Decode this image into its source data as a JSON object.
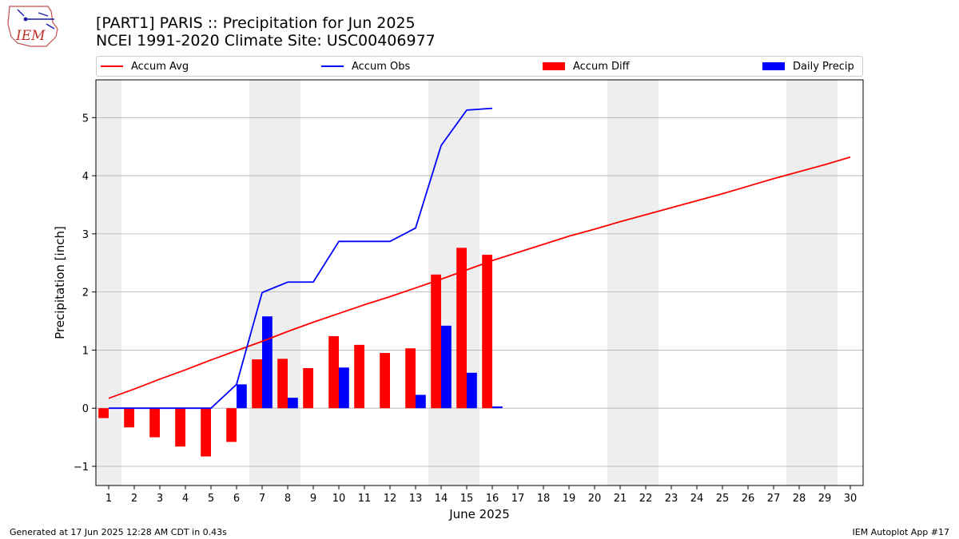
{
  "header": {
    "title_line1": "[PART1] PARIS :: Precipitation for Jun 2025",
    "title_line2": "NCEI 1991-2020 Climate Site: USC00406977",
    "logo_text": "IEM"
  },
  "legend": {
    "accum_avg": "Accum Avg",
    "accum_obs": "Accum Obs",
    "accum_diff": "Accum Diff",
    "daily_precip": "Daily Precip"
  },
  "footer": {
    "generated": "Generated at 17 Jun 2025 12:28 AM CDT in 0.43s",
    "app": "IEM Autoplot App #17"
  },
  "colors": {
    "accum_avg": "#ff0000",
    "accum_obs": "#0000ff",
    "accum_diff": "#ff0000",
    "daily_precip": "#0000ff",
    "weekend_shade": "#eeeeee",
    "grid": "#b0b0b0"
  },
  "chart_data": {
    "type": "bar",
    "title": "[PART1] PARIS :: Precipitation for Jun 2025",
    "xlabel": "June 2025",
    "ylabel": "Precipitation [inch]",
    "xlim": [
      0.5,
      30.5
    ],
    "ylim": [
      -1.33,
      5.65
    ],
    "yticks": [
      -1,
      0,
      1,
      2,
      3,
      4,
      5
    ],
    "ytick_labels": [
      "−1",
      "0",
      "1",
      "2",
      "3",
      "4",
      "5"
    ],
    "grid": "y",
    "days": [
      1,
      2,
      3,
      4,
      5,
      6,
      7,
      8,
      9,
      10,
      11,
      12,
      13,
      14,
      15,
      16,
      17,
      18,
      19,
      20,
      21,
      22,
      23,
      24,
      25,
      26,
      27,
      28,
      29,
      30
    ],
    "weekend_days": [
      1,
      7,
      8,
      14,
      15,
      21,
      22,
      28,
      29
    ],
    "series": [
      {
        "name": "Accum Avg",
        "type": "line",
        "x": [
          1,
          2,
          3,
          4,
          5,
          6,
          7,
          8,
          9,
          10,
          11,
          12,
          13,
          14,
          15,
          16,
          17,
          18,
          19,
          20,
          21,
          22,
          23,
          24,
          25,
          26,
          27,
          28,
          29,
          30
        ],
        "values": [
          0.17,
          0.33,
          0.5,
          0.66,
          0.83,
          0.99,
          1.15,
          1.32,
          1.48,
          1.63,
          1.78,
          1.92,
          2.07,
          2.22,
          2.38,
          2.54,
          2.68,
          2.82,
          2.96,
          3.08,
          3.21,
          3.33,
          3.45,
          3.57,
          3.69,
          3.82,
          3.95,
          4.07,
          4.19,
          4.32
        ]
      },
      {
        "name": "Accum Obs",
        "type": "line",
        "x": [
          1,
          2,
          3,
          4,
          5,
          6,
          7,
          8,
          9,
          10,
          11,
          12,
          13,
          14,
          15,
          16
        ],
        "values": [
          0,
          0,
          0,
          0,
          0,
          0.41,
          1.99,
          2.17,
          2.17,
          2.87,
          2.87,
          2.87,
          3.1,
          4.52,
          5.13,
          5.16
        ]
      },
      {
        "name": "Accum Diff",
        "type": "bar",
        "x": [
          1,
          2,
          3,
          4,
          5,
          6,
          7,
          8,
          9,
          10,
          11,
          12,
          13,
          14,
          15,
          16
        ],
        "values": [
          -0.17,
          -0.33,
          -0.5,
          -0.66,
          -0.83,
          -0.58,
          0.84,
          0.85,
          0.69,
          1.24,
          1.09,
          0.95,
          1.03,
          2.3,
          2.76,
          2.64
        ]
      },
      {
        "name": "Daily Precip",
        "type": "bar",
        "x": [
          1,
          2,
          3,
          4,
          5,
          6,
          7,
          8,
          9,
          10,
          11,
          12,
          13,
          14,
          15,
          16
        ],
        "values": [
          0,
          0,
          0,
          0,
          0,
          0.41,
          1.58,
          0.18,
          0,
          0.7,
          0,
          0,
          0.23,
          1.42,
          0.61,
          0.03
        ]
      }
    ]
  }
}
